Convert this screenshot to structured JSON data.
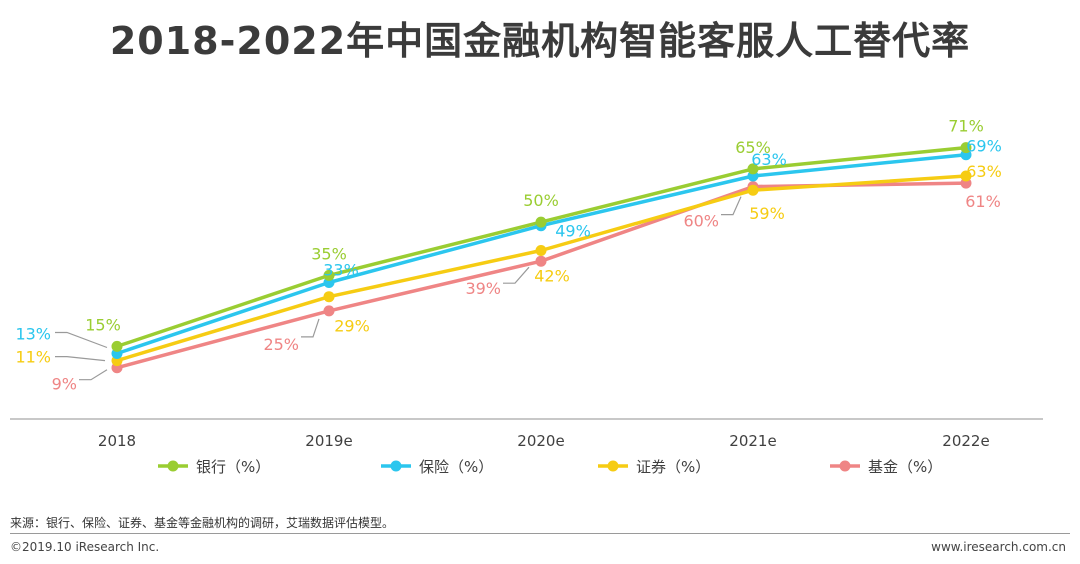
{
  "footer": {
    "source": "来源：银行、保险、证券、基金等金融机构的调研，艾瑞数据评估模型。",
    "copyright": "©2019.10 iResearch Inc.",
    "website": "www.iresearch.com.cn"
  },
  "chart_data": {
    "type": "line",
    "title": "2018-2022年中国金融机构智能客服人工替代率",
    "xlabel": "",
    "ylabel": "",
    "categories": [
      "2018",
      "2019e",
      "2020e",
      "2021e",
      "2022e"
    ],
    "ylim": [
      0,
      80
    ],
    "grid": false,
    "legend_position": "bottom",
    "series": [
      {
        "name": "银行（%）",
        "color": "#9ACD32",
        "values": [
          15,
          35,
          50,
          65,
          71
        ]
      },
      {
        "name": "保险（%）",
        "color": "#2BC6EE",
        "values": [
          13,
          33,
          49,
          63,
          69
        ]
      },
      {
        "name": "证券（%）",
        "color": "#F6CC13",
        "values": [
          11,
          29,
          42,
          59,
          63
        ]
      },
      {
        "name": "基金（%）",
        "color": "#EF8585",
        "values": [
          9,
          25,
          39,
          60,
          61
        ]
      }
    ]
  }
}
